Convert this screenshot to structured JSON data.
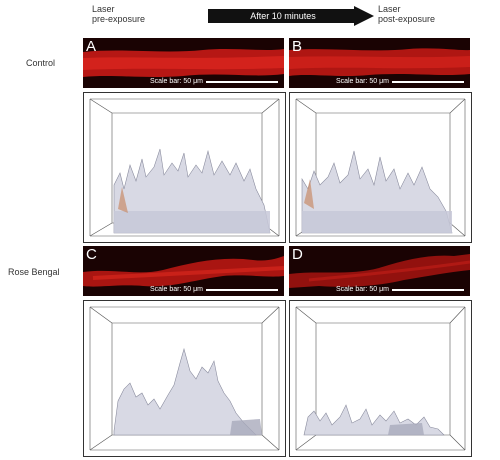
{
  "header": {
    "left_line1": "Laser",
    "left_line2": "pre-exposure",
    "arrow_label": "After 10 minutes",
    "right_line1": "Laser",
    "right_line2": "post-exposure"
  },
  "rows": [
    {
      "label": "Control"
    },
    {
      "label": "Rose Bengal"
    }
  ],
  "panels": [
    {
      "letter": "A",
      "scale_bar": "Scale bar: 50 μm"
    },
    {
      "letter": "B",
      "scale_bar": "Scale bar: 50 μm"
    },
    {
      "letter": "C",
      "scale_bar": "Scale bar: 50 μm"
    },
    {
      "letter": "D",
      "scale_bar": "Scale bar: 50 μm"
    }
  ],
  "colors": {
    "fluorescence": "#d41f1a",
    "background_dark": "#1a0303",
    "surface_fill": "#dcdde8",
    "surface_edge": "#8a8c9e",
    "arrow": "#111111"
  }
}
